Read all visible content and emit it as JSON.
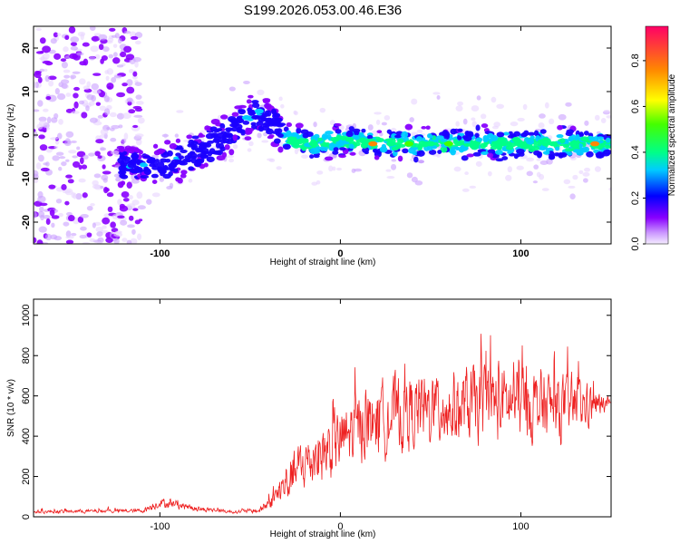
{
  "chart_data": [
    {
      "type": "heatmap",
      "title": "S199.2026.053.00.46.E36",
      "xlabel": "Height of straight line (km)",
      "ylabel": "Frequency (Hz)",
      "xlim": [
        -170,
        150
      ],
      "ylim": [
        -25,
        25
      ],
      "xticks": [
        {
          "v": -100,
          "label": "-100"
        },
        {
          "v": 0,
          "label": "0"
        },
        {
          "v": 100,
          "label": "100"
        }
      ],
      "yticks": [
        {
          "v": -20,
          "label": "-20"
        },
        {
          "v": -10,
          "label": "-10"
        },
        {
          "v": 0,
          "label": "0"
        },
        {
          "v": 10,
          "label": "10"
        },
        {
          "v": 20,
          "label": "20"
        }
      ],
      "ridge": {
        "x": [
          -120,
          -100,
          -80,
          -65,
          -55,
          -45,
          -38,
          -30,
          -25,
          -10,
          0,
          20,
          50,
          80,
          110,
          130,
          148
        ],
        "frequency": [
          -7,
          -7,
          -4,
          -1,
          3,
          5,
          3,
          -1,
          -1.5,
          -2,
          -1,
          -2,
          -2,
          -2,
          -2,
          -2,
          -2
        ]
      },
      "colorbar": {
        "label": "Normalized spectral amplitude",
        "range": [
          0,
          0.95
        ],
        "ticks": [
          {
            "v": 0,
            "label": "0.0"
          },
          {
            "v": 0.2,
            "label": "0.2"
          },
          {
            "v": 0.4,
            "label": "0.4"
          },
          {
            "v": 0.6,
            "label": "0.6"
          },
          {
            "v": 0.8,
            "label": "0.8"
          }
        ]
      }
    },
    {
      "type": "line",
      "xlabel": "Height of straight line (km)",
      "ylabel": "SNR (10 * v/v)",
      "xlim": [
        -170,
        150
      ],
      "ylim": [
        0,
        1080
      ],
      "xticks": [
        {
          "v": -100,
          "label": "-100"
        },
        {
          "v": 0,
          "label": "0"
        },
        {
          "v": 100,
          "label": "100"
        }
      ],
      "yticks": [
        {
          "v": 0,
          "label": "0"
        },
        {
          "v": 200,
          "label": "200"
        },
        {
          "v": 400,
          "label": "400"
        },
        {
          "v": 600,
          "label": "600"
        },
        {
          "v": 800,
          "label": "800"
        },
        {
          "v": 1000,
          "label": "1000"
        }
      ],
      "series": [
        {
          "name": "SNR",
          "color": "#ee2222",
          "envelope": {
            "x": [
              -170,
              -110,
              -100,
              -90,
              -80,
              -60,
              -45,
              -38,
              -30,
              -20,
              -10,
              0,
              10,
              30,
              40,
              60,
              80,
              100,
              120,
              140,
              150
            ],
            "mean": [
              25,
              30,
              70,
              60,
              40,
              25,
              30,
              80,
              170,
              260,
              320,
              380,
              440,
              500,
              520,
              540,
              560,
              560,
              540,
              550,
              560
            ],
            "amp": [
              12,
              15,
              35,
              30,
              20,
              12,
              18,
              60,
              150,
              200,
              230,
              250,
              250,
              260,
              270,
              270,
              280,
              280,
              240,
              140,
              20
            ]
          }
        }
      ]
    }
  ]
}
